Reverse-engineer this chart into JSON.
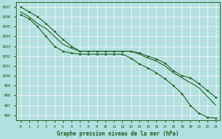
{
  "title": "Graphe pression niveau de la mer (hPa)",
  "background_color": "#b2e0e0",
  "grid_color": "#d0e8e8",
  "line_color": "#1a5c1a",
  "xlim": [
    -0.5,
    23.5
  ],
  "ylim": [
    995.5,
    1007.5
  ],
  "yticks": [
    996,
    997,
    998,
    999,
    1000,
    1001,
    1002,
    1003,
    1004,
    1005,
    1006,
    1007
  ],
  "xticks": [
    0,
    1,
    2,
    3,
    4,
    5,
    6,
    7,
    8,
    9,
    10,
    11,
    12,
    13,
    14,
    15,
    16,
    17,
    18,
    19,
    20,
    21,
    22,
    23
  ],
  "series": [
    [
      1007.0,
      1006.5,
      1006.0,
      1005.3,
      1004.5,
      1003.7,
      1003.0,
      1002.5,
      1002.5,
      1002.5,
      1002.5,
      1002.5,
      1002.5,
      1002.5,
      1002.3,
      1002.0,
      1001.7,
      1001.3,
      1000.5,
      1000.0,
      999.8,
      999.2,
      998.5,
      997.8
    ],
    [
      1006.5,
      1006.0,
      1005.3,
      1004.8,
      1004.0,
      1003.2,
      1002.8,
      1002.5,
      1002.5,
      1002.5,
      1002.5,
      1002.5,
      1002.5,
      1002.5,
      1002.2,
      1001.8,
      1001.5,
      1001.0,
      1000.3,
      999.8,
      999.3,
      998.8,
      997.9,
      997.0
    ],
    [
      1006.2,
      1005.8,
      1005.0,
      1004.0,
      1003.0,
      1002.5,
      1002.3,
      1002.2,
      1002.2,
      1002.2,
      1002.2,
      1002.2,
      1002.2,
      1001.8,
      1001.2,
      1000.8,
      1000.3,
      999.7,
      999.0,
      998.2,
      997.0,
      996.2,
      995.8,
      995.7
    ]
  ],
  "marker_indices_series0": [
    0,
    1,
    2,
    3,
    4,
    5,
    6,
    7,
    8,
    9,
    10,
    11,
    12,
    13,
    14,
    15,
    16,
    17,
    18,
    19,
    20,
    21,
    22,
    23
  ],
  "marker_indices_series2": [
    0,
    1,
    2,
    3,
    4,
    5,
    6,
    7,
    8,
    9,
    10,
    11,
    12,
    13,
    14,
    15,
    16,
    17,
    18,
    19,
    20,
    21,
    22,
    23
  ]
}
